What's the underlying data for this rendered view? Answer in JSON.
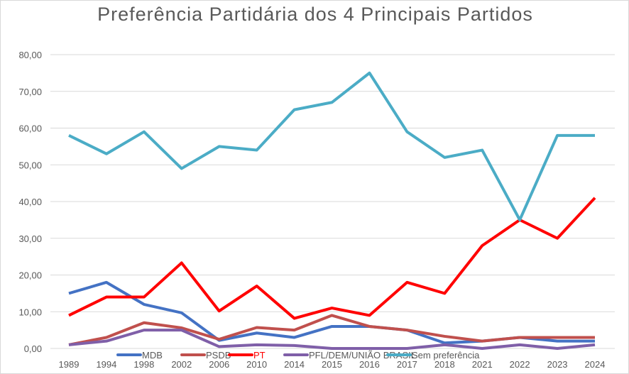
{
  "chart_data": {
    "type": "line",
    "title": "Preferência Partidária dos 4 Principais Partidos",
    "xlabel": "",
    "ylabel": "",
    "ylim": [
      0,
      80
    ],
    "yticks": [
      "0,00",
      "10,00",
      "20,00",
      "30,00",
      "40,00",
      "50,00",
      "60,00",
      "70,00",
      "80,00"
    ],
    "grid": true,
    "legend_position": "bottom",
    "categories": [
      "1989",
      "1994",
      "1998",
      "2002",
      "2006",
      "2010",
      "2014",
      "2015",
      "2016",
      "2017",
      "2018",
      "2021",
      "2022",
      "2023",
      "2024"
    ],
    "series": [
      {
        "name": "MDB",
        "color": "#4472c4",
        "values": [
          15,
          18,
          12,
          9.7,
          2.2,
          4.2,
          3,
          6,
          6,
          5,
          1.5,
          2,
          3,
          2,
          2
        ]
      },
      {
        "name": "PSDB",
        "color": "#c0504d",
        "values": [
          1,
          3,
          7,
          5.6,
          2.5,
          5.7,
          5,
          9,
          6,
          5,
          3.3,
          2,
          3,
          3,
          3
        ]
      },
      {
        "name": "PT",
        "color": "#ff0000",
        "values": [
          9,
          14,
          14,
          23.3,
          10.2,
          17,
          8.2,
          11,
          9,
          18,
          15,
          28,
          35,
          30,
          41
        ]
      },
      {
        "name": "PFL/DEM/UNIÃO BRASIL",
        "color": "#7f5fa8",
        "values": [
          1,
          2,
          5,
          5,
          0.5,
          1,
          0.8,
          0,
          0,
          0,
          1,
          0,
          1,
          0,
          1
        ]
      },
      {
        "name": "Sem preferência",
        "color": "#4bacc6",
        "values": [
          58,
          53,
          59,
          49,
          55,
          54,
          65,
          67,
          75,
          59,
          52,
          54,
          35,
          58,
          58
        ]
      }
    ]
  }
}
